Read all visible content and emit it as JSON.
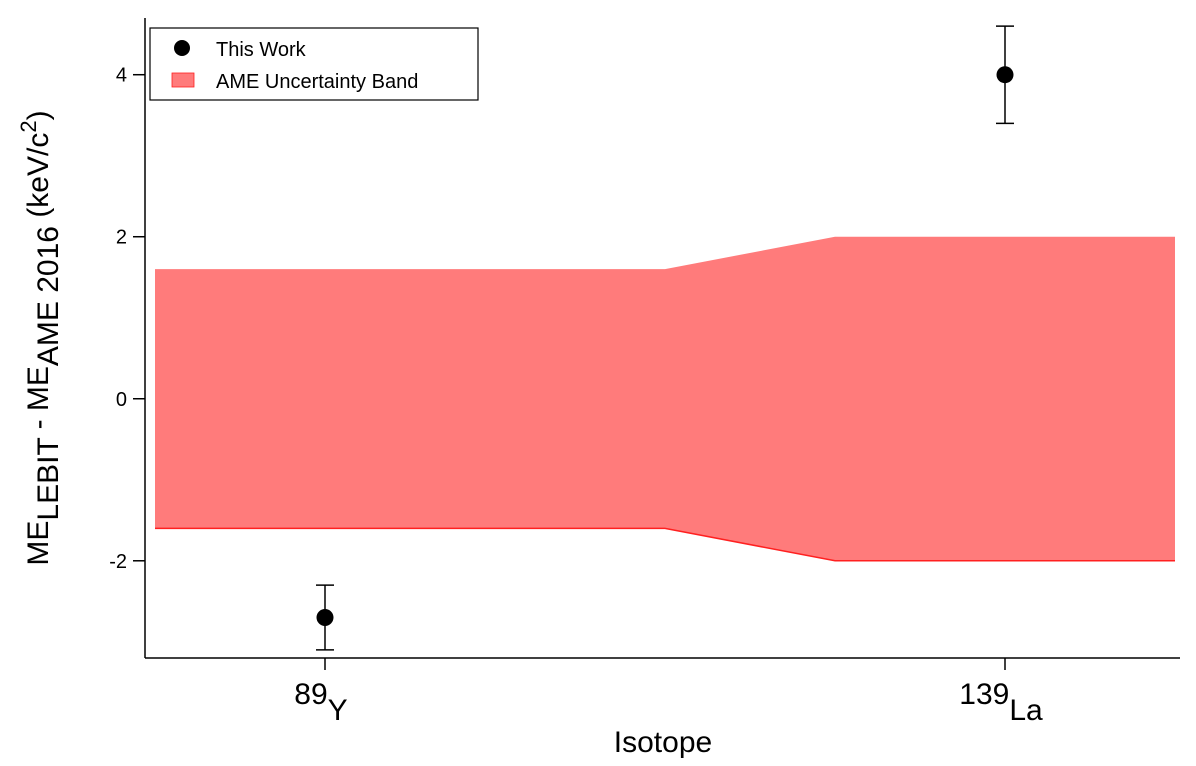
{
  "chart_data": {
    "type": "scatter",
    "title": "",
    "xlabel": "Isotope",
    "ylabel": {
      "main": "ME",
      "sub1": "LEBIT",
      "mid": " - ME",
      "sub2": "AME 2016",
      "unit": " (keV/c",
      "sup": "2",
      "close": ")"
    },
    "ylim": [
      -3.2,
      4.7
    ],
    "yticks": [
      -2,
      0,
      2,
      4
    ],
    "categories": [
      {
        "mass": "89",
        "symbol": "Y"
      },
      {
        "mass": "139",
        "symbol": "La"
      }
    ],
    "series": [
      {
        "name": "This Work",
        "color": "#000000",
        "points": [
          {
            "category": 0,
            "y": -2.7,
            "err": 0.4
          },
          {
            "category": 1,
            "y": 4.0,
            "err": 0.6
          }
        ]
      }
    ],
    "band": {
      "name": "AME Uncertainty Band",
      "color": "#ff7b7b",
      "edge_color": "#ff2020",
      "profile": [
        {
          "x": -0.25,
          "half_width": 1.6
        },
        {
          "x": 0.5,
          "half_width": 1.6
        },
        {
          "x": 0.75,
          "half_width": 2.0
        },
        {
          "x": 1.25,
          "half_width": 2.0
        }
      ]
    },
    "xlim": [
      -0.25,
      1.25
    ],
    "legend": {
      "position": "top-left"
    },
    "grid": false
  }
}
